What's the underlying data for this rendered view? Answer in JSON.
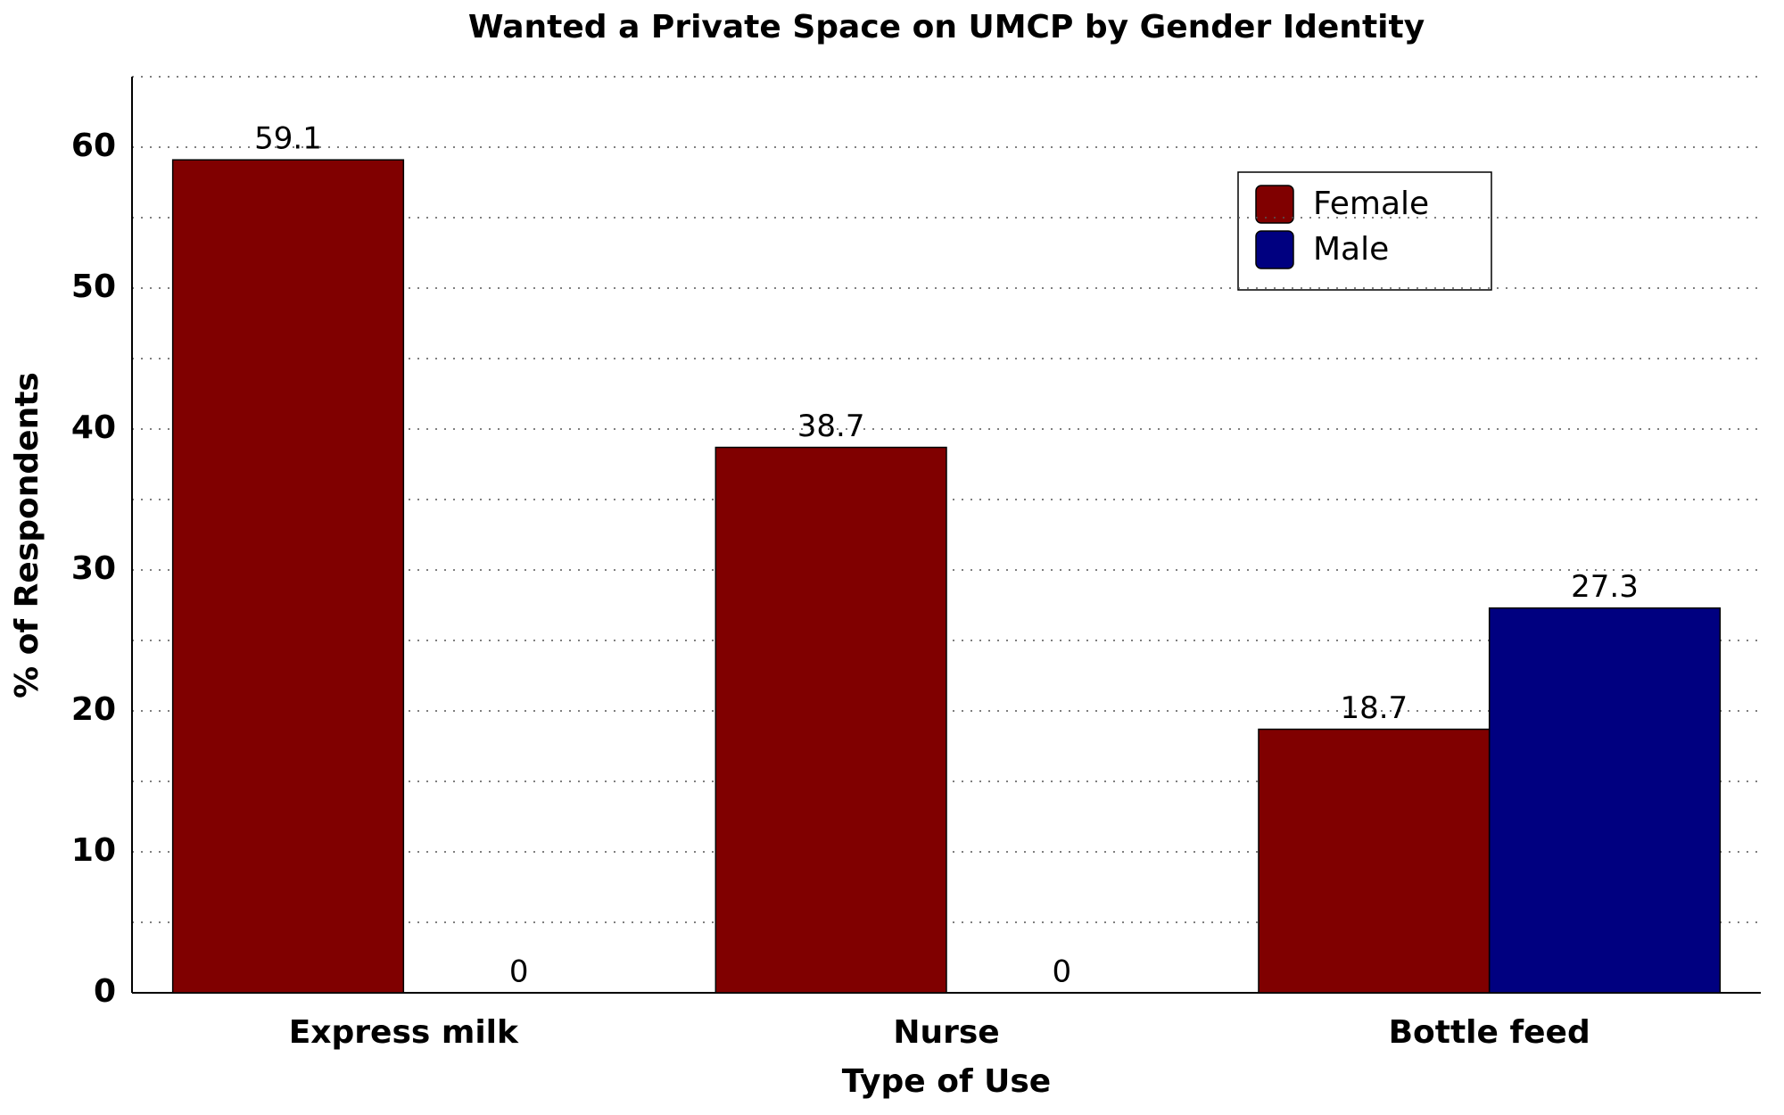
{
  "chart_data": {
    "type": "bar",
    "title": "Wanted a Private Space on UMCP by Gender Identity",
    "x_label": "Type of Use",
    "y_label": "% of Respondents",
    "categories": [
      "Express milk",
      "Nurse",
      "Bottle feed"
    ],
    "series": [
      {
        "name": "Female",
        "color": "#800000",
        "values": [
          59.1,
          38.7,
          18.7
        ]
      },
      {
        "name": "Male",
        "color": "#000080",
        "values": [
          0,
          0,
          27.3
        ]
      }
    ],
    "ylim": [
      0,
      65
    ],
    "yticks": [
      0,
      10,
      20,
      30,
      40,
      50,
      60
    ],
    "minor_yticks": [
      5,
      15,
      25,
      35,
      45,
      55,
      65
    ],
    "grid": true,
    "legend": "upper right"
  }
}
